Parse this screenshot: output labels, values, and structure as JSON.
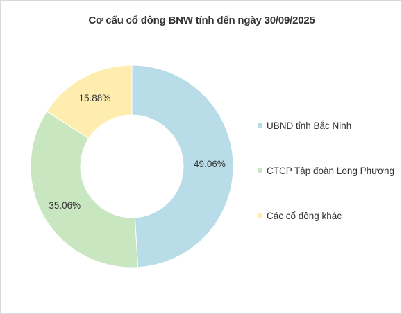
{
  "chart_data": {
    "type": "pie",
    "title": "Cơ cấu cổ đông BNW tính đến ngày 30/09/2025",
    "donut": true,
    "categories": [
      "UBND tỉnh Bắc Ninh",
      "CTCP Tập đoàn Long Phương",
      "Các cổ đông khác"
    ],
    "values": [
      49.06,
      35.06,
      15.88
    ],
    "labels": [
      "49.06%",
      "35.06%",
      "15.88%"
    ],
    "colors": [
      "#b8dde8",
      "#c8e6c0",
      "#ffedb0"
    ],
    "legend_position": "right"
  }
}
